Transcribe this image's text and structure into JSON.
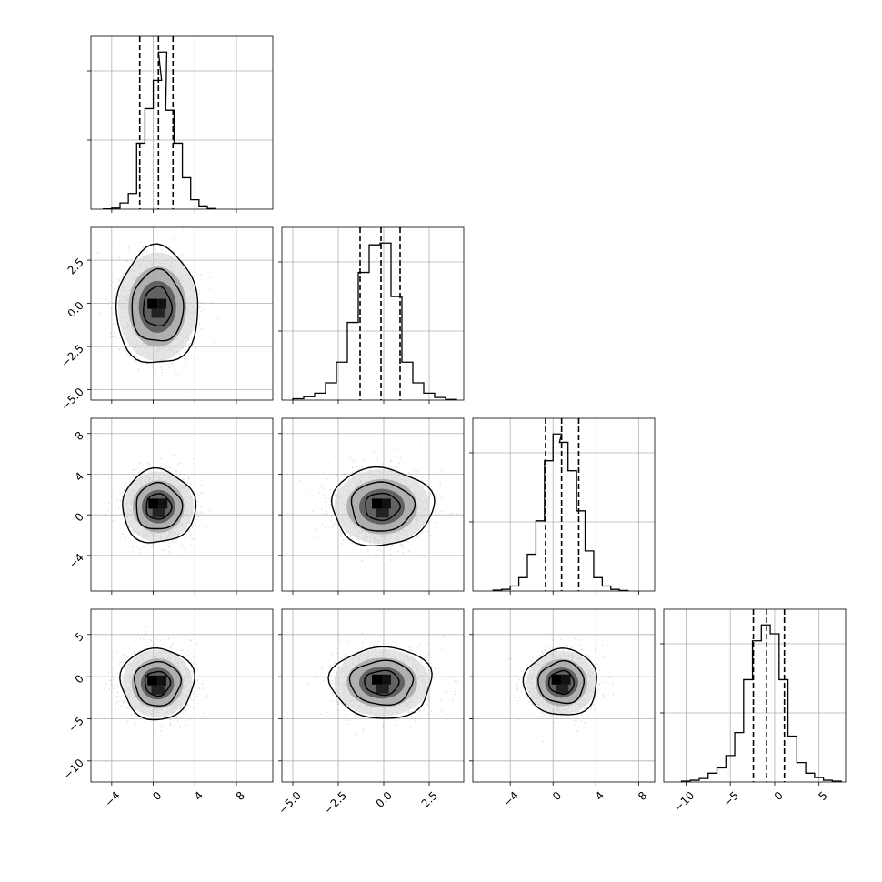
{
  "chart_data": {
    "type": "corner",
    "grid": true,
    "params": [
      {
        "range": [
          -6,
          11.5
        ],
        "ticks": [
          -4,
          0,
          4,
          8
        ],
        "tick_labels": [
          "−4",
          "0",
          "4",
          "8"
        ],
        "quantiles": [
          -1.3,
          0.5,
          1.9
        ],
        "hist": [
          {
            "x": -4.4,
            "c": 0.002
          },
          {
            "x": -3.6,
            "c": 0.007
          },
          {
            "x": -2.8,
            "c": 0.04
          },
          {
            "x": -2.0,
            "c": 0.1
          },
          {
            "x": -1.2,
            "c": 0.42
          },
          {
            "x": -0.4,
            "c": 0.64
          },
          {
            "x": 0.4,
            "c": 0.82
          },
          {
            "x": 0.9,
            "c": 1.0
          },
          {
            "x": 1.6,
            "c": 0.63
          },
          {
            "x": 2.4,
            "c": 0.42
          },
          {
            "x": 3.2,
            "c": 0.2
          },
          {
            "x": 4.0,
            "c": 0.06
          },
          {
            "x": 4.8,
            "c": 0.015
          },
          {
            "x": 5.6,
            "c": 0.004
          }
        ]
      },
      {
        "range": [
          -5.6,
          4.4
        ],
        "ticks": [
          -5.0,
          -2.5,
          0.0,
          2.5
        ],
        "tick_labels": [
          "−5.0",
          "−2.5",
          "0.0",
          "2.5"
        ],
        "quantiles": [
          -1.3,
          -0.15,
          0.9
        ],
        "hist": [
          {
            "x": -4.7,
            "c": 0.008
          },
          {
            "x": -4.1,
            "c": 0.02
          },
          {
            "x": -3.5,
            "c": 0.04
          },
          {
            "x": -2.9,
            "c": 0.1
          },
          {
            "x": -2.3,
            "c": 0.22
          },
          {
            "x": -1.7,
            "c": 0.45
          },
          {
            "x": -1.1,
            "c": 0.74
          },
          {
            "x": -0.5,
            "c": 0.9
          },
          {
            "x": 0.1,
            "c": 0.91
          },
          {
            "x": 0.7,
            "c": 0.6
          },
          {
            "x": 1.3,
            "c": 0.22
          },
          {
            "x": 1.9,
            "c": 0.1
          },
          {
            "x": 2.5,
            "c": 0.04
          },
          {
            "x": 3.1,
            "c": 0.015
          },
          {
            "x": 3.7,
            "c": 0.004
          }
        ]
      },
      {
        "range": [
          -7.5,
          9.5
        ],
        "ticks": [
          -4,
          0,
          4,
          8
        ],
        "tick_labels": [
          "−4",
          "0",
          "4",
          "8"
        ],
        "quantiles": [
          -0.7,
          0.8,
          2.4
        ],
        "hist": [
          {
            "x": -5.2,
            "c": 0.005
          },
          {
            "x": -4.4,
            "c": 0.01
          },
          {
            "x": -3.6,
            "c": 0.03
          },
          {
            "x": -2.8,
            "c": 0.08
          },
          {
            "x": -2.0,
            "c": 0.22
          },
          {
            "x": -1.2,
            "c": 0.42
          },
          {
            "x": -0.4,
            "c": 0.78
          },
          {
            "x": 0.4,
            "c": 0.94
          },
          {
            "x": 1.0,
            "c": 0.89
          },
          {
            "x": 1.8,
            "c": 0.72
          },
          {
            "x": 2.6,
            "c": 0.48
          },
          {
            "x": 3.4,
            "c": 0.24
          },
          {
            "x": 4.2,
            "c": 0.08
          },
          {
            "x": 5.0,
            "c": 0.03
          },
          {
            "x": 5.8,
            "c": 0.01
          },
          {
            "x": 6.6,
            "c": 0.003
          }
        ]
      },
      {
        "range": [
          -12.5,
          8.0
        ],
        "ticks": [
          -10,
          -5,
          0,
          5
        ],
        "tick_labels": [
          "−10",
          "−5",
          "0",
          "5"
        ],
        "quantiles": [
          -2.4,
          -0.9,
          1.1
        ],
        "hist": [
          {
            "x": -10.0,
            "c": 0.005
          },
          {
            "x": -9.0,
            "c": 0.01
          },
          {
            "x": -8.0,
            "c": 0.02
          },
          {
            "x": -7.0,
            "c": 0.05
          },
          {
            "x": -6.0,
            "c": 0.08
          },
          {
            "x": -5.0,
            "c": 0.15
          },
          {
            "x": -4.0,
            "c": 0.28
          },
          {
            "x": -3.0,
            "c": 0.58
          },
          {
            "x": -2.0,
            "c": 0.8
          },
          {
            "x": -1.0,
            "c": 0.89
          },
          {
            "x": 0.0,
            "c": 0.84
          },
          {
            "x": 1.0,
            "c": 0.58
          },
          {
            "x": 2.0,
            "c": 0.26
          },
          {
            "x": 3.0,
            "c": 0.11
          },
          {
            "x": 4.0,
            "c": 0.05
          },
          {
            "x": 5.0,
            "c": 0.025
          },
          {
            "x": 6.0,
            "c": 0.01
          },
          {
            "x": 7.0,
            "c": 0.005
          }
        ]
      }
    ],
    "pairs": [
      {
        "x": 0,
        "y": 1,
        "center": [
          0.4,
          -0.2
        ],
        "sigma": [
          1.8,
          1.5
        ],
        "sigma_out": [
          1.9,
          1.65
        ]
      },
      {
        "x": 0,
        "y": 2,
        "center": [
          0.5,
          0.8
        ],
        "sigma": [
          1.6,
          1.65
        ],
        "sigma_out": [
          1.7,
          1.75
        ]
      },
      {
        "x": 1,
        "y": 2,
        "center": [
          -0.1,
          0.8
        ],
        "sigma": [
          1.25,
          1.75
        ],
        "sigma_out": [
          1.35,
          1.85
        ]
      },
      {
        "x": 0,
        "y": 3,
        "center": [
          0.4,
          -0.8
        ],
        "sigma": [
          1.6,
          1.9
        ],
        "sigma_out": [
          1.7,
          2.05
        ]
      },
      {
        "x": 1,
        "y": 3,
        "center": [
          -0.1,
          -0.7
        ],
        "sigma": [
          1.25,
          1.9
        ],
        "sigma_out": [
          1.35,
          2.05
        ]
      },
      {
        "x": 2,
        "y": 3,
        "center": [
          0.8,
          -0.7
        ],
        "sigma": [
          1.55,
          1.8
        ],
        "sigma_out": [
          1.65,
          1.9
        ]
      }
    ],
    "contour_levels_sigma": [
      0.5,
      1.0,
      1.5,
      2.0
    ]
  }
}
